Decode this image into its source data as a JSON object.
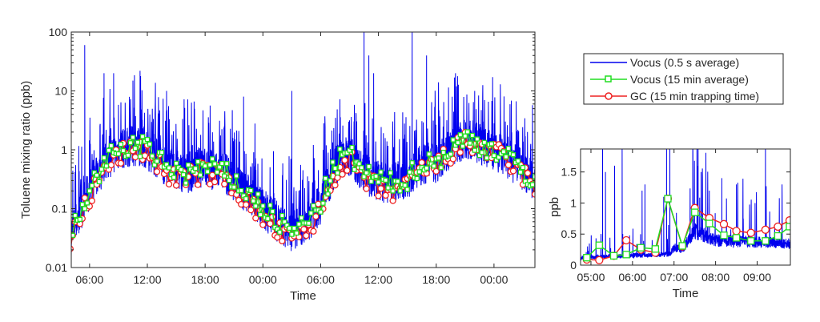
{
  "chart_data": [
    {
      "type": "line",
      "title": "",
      "xlabel": "Time",
      "ylabel": "Toluene mixing ratio (ppb)",
      "yscale": "log",
      "ylim": [
        0.01,
        100
      ],
      "yticks": [
        "0.01",
        "0.1",
        "1",
        "10",
        "100"
      ],
      "xticks": [
        "06:00",
        "12:00",
        "18:00",
        "00:00",
        "06:00",
        "12:00",
        "18:00",
        "00:00"
      ],
      "x_hours_range": [
        4.1,
        52.25
      ],
      "x_hours_note": "hours since 00:00 of day 1",
      "hours": [
        4,
        5,
        6,
        7,
        8,
        9,
        10,
        11,
        12,
        13,
        14,
        15,
        16,
        17,
        18,
        19,
        20,
        21,
        22,
        23,
        24,
        25,
        26,
        27,
        28,
        29,
        30,
        31,
        32,
        33,
        34,
        35,
        36,
        37,
        38,
        39,
        40,
        41,
        42,
        43,
        44,
        45,
        46,
        47,
        48,
        49,
        50,
        51,
        52
      ],
      "series": [
        {
          "name": "Vocus (15 min average)",
          "color": "#22dd22",
          "marker": "square",
          "values": [
            0.03,
            0.08,
            0.2,
            0.4,
            0.7,
            1.0,
            1.1,
            1.2,
            1.0,
            0.7,
            0.5,
            0.45,
            0.4,
            0.45,
            0.5,
            0.45,
            0.4,
            0.3,
            0.2,
            0.15,
            0.1,
            0.07,
            0.05,
            0.04,
            0.05,
            0.07,
            0.12,
            0.3,
            0.7,
            0.8,
            0.5,
            0.35,
            0.3,
            0.25,
            0.3,
            0.3,
            0.5,
            0.6,
            0.6,
            0.9,
            1.2,
            1.5,
            1.4,
            1.1,
            1.0,
            0.8,
            0.6,
            0.45,
            0.3
          ]
        },
        {
          "name": "GC (15 min trapping time)",
          "color": "#ee2222",
          "marker": "circle",
          "values": [
            0.025,
            0.06,
            0.15,
            0.3,
            0.55,
            0.8,
            0.9,
            1.1,
            0.9,
            0.6,
            0.4,
            0.35,
            0.33,
            0.38,
            0.42,
            0.38,
            0.32,
            0.24,
            0.15,
            0.11,
            0.07,
            0.05,
            0.035,
            0.03,
            0.035,
            0.05,
            0.09,
            0.22,
            0.55,
            0.65,
            0.4,
            0.26,
            0.22,
            0.18,
            0.22,
            0.22,
            0.4,
            0.5,
            0.5,
            0.75,
            1.0,
            1.3,
            1.2,
            1.0,
            0.9,
            0.7,
            0.5,
            0.38,
            0.25
          ]
        },
        {
          "name": "Vocus (0.5 s average)",
          "color": "#0000ee",
          "spikes_hours": [
            5.5,
            7.5,
            8.5,
            10.5,
            14,
            22,
            27,
            34.5,
            35,
            35.5,
            39.5,
            41,
            44,
            46
          ],
          "spikes_values": [
            60,
            20,
            20,
            15,
            10,
            8,
            10,
            100,
            40,
            20,
            100,
            40,
            20,
            10
          ]
        }
      ]
    },
    {
      "type": "line",
      "xlabel": "Time",
      "ylabel": "ppb",
      "ylim": [
        0,
        1.87
      ],
      "yticks": [
        "0",
        "0.5",
        "1",
        "1.5"
      ],
      "xticks": [
        "05:00",
        "06:00",
        "07:00",
        "08:00",
        "09:00"
      ],
      "x_hours_range": [
        4.75,
        9.8
      ],
      "hours": [
        4.9,
        5.2,
        5.55,
        5.85,
        6.2,
        6.55,
        6.85,
        7.2,
        7.5,
        7.85,
        8.2,
        8.5,
        8.85,
        9.2,
        9.5,
        9.78
      ],
      "series": [
        {
          "name": "Vocus (15 min average)",
          "color": "#22dd22",
          "values": [
            0.12,
            0.32,
            0.15,
            0.17,
            0.28,
            0.26,
            1.07,
            0.31,
            0.85,
            0.67,
            0.48,
            0.44,
            0.39,
            0.39,
            0.47,
            0.62
          ]
        },
        {
          "name": "GC (15 min trapping time)",
          "color": "#ee2222",
          "values": [
            0.09,
            0.08,
            0.15,
            0.4,
            0.25,
            0.2,
            1.07,
            0.3,
            0.92,
            0.76,
            0.66,
            0.55,
            0.52,
            0.57,
            0.62,
            0.72
          ]
        },
        {
          "name": "Vocus (0.5 s average)",
          "color": "#0000ee",
          "baseline_hours": [
            4.75,
            6.9,
            7.0,
            7.2,
            7.5,
            8.0,
            9.8
          ],
          "baseline_values": [
            0.12,
            0.18,
            0.28,
            0.25,
            0.55,
            0.4,
            0.35
          ],
          "spikes_hours": [
            5.28,
            5.35,
            5.57,
            5.75,
            6.23,
            6.3,
            6.75,
            6.82,
            6.9,
            7.45,
            7.55,
            7.58,
            7.65,
            7.85,
            8.15,
            8.5,
            8.95,
            9.2,
            9.6
          ],
          "spikes_values": [
            2,
            1.5,
            1.6,
            2,
            1.2,
            1.3,
            1.1,
            2,
            2,
            2,
            2,
            1.9,
            1.5,
            1.2,
            1.4,
            1.3,
            1.0,
            2,
            1.3
          ]
        }
      ]
    }
  ],
  "legend": {
    "position": "top-right",
    "entries": [
      "Vocus (0.5 s average)",
      "Vocus (15 min average)",
      "GC (15 min trapping time)"
    ]
  }
}
